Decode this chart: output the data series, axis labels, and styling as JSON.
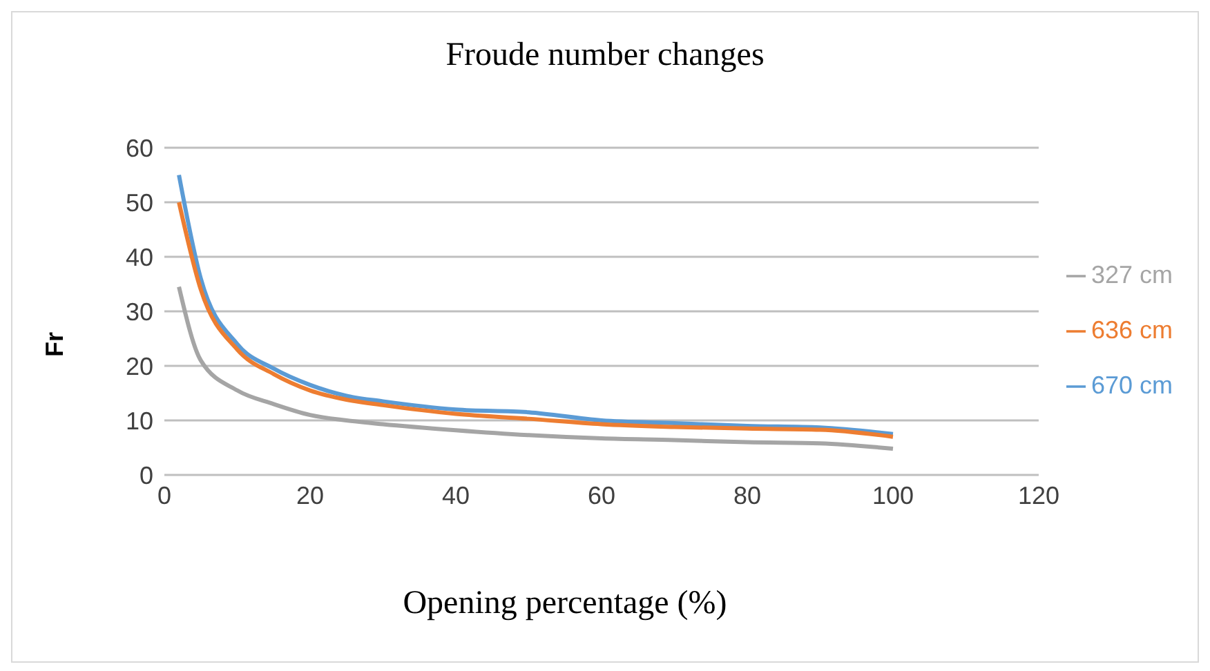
{
  "chart_data": {
    "type": "line",
    "title": "Froude number changes",
    "xlabel": "Opening percentage (%)",
    "ylabel": "Fr",
    "x": [
      2,
      5,
      10,
      15,
      20,
      25,
      30,
      40,
      50,
      60,
      70,
      80,
      90,
      100
    ],
    "series": [
      {
        "name": "670 cm",
        "color": "#5b9bd5",
        "values": [
          55,
          36,
          24,
          19.5,
          16.5,
          14.5,
          13.5,
          12,
          11.5,
          10,
          9.5,
          9,
          8.7,
          7.5
        ]
      },
      {
        "name": "636 cm",
        "color": "#ed7d31",
        "values": [
          50,
          34,
          23,
          18.5,
          15.5,
          13.8,
          12.8,
          11.2,
          10.3,
          9.3,
          8.8,
          8.5,
          8.3,
          7
        ]
      },
      {
        "name": "327 cm",
        "color": "#a5a5a5",
        "values": [
          34.5,
          21,
          15.5,
          13,
          11,
          10,
          9.3,
          8.2,
          7.3,
          6.7,
          6.4,
          6,
          5.8,
          4.8
        ]
      }
    ],
    "xlim": [
      0,
      120
    ],
    "xticks": [
      0,
      20,
      40,
      60,
      80,
      100,
      120
    ],
    "ylim": [
      0,
      60
    ],
    "yticks": [
      0,
      10,
      20,
      30,
      40,
      50,
      60
    ],
    "grid": "y",
    "legend": "right",
    "marker": "none",
    "line_style": "solid"
  }
}
